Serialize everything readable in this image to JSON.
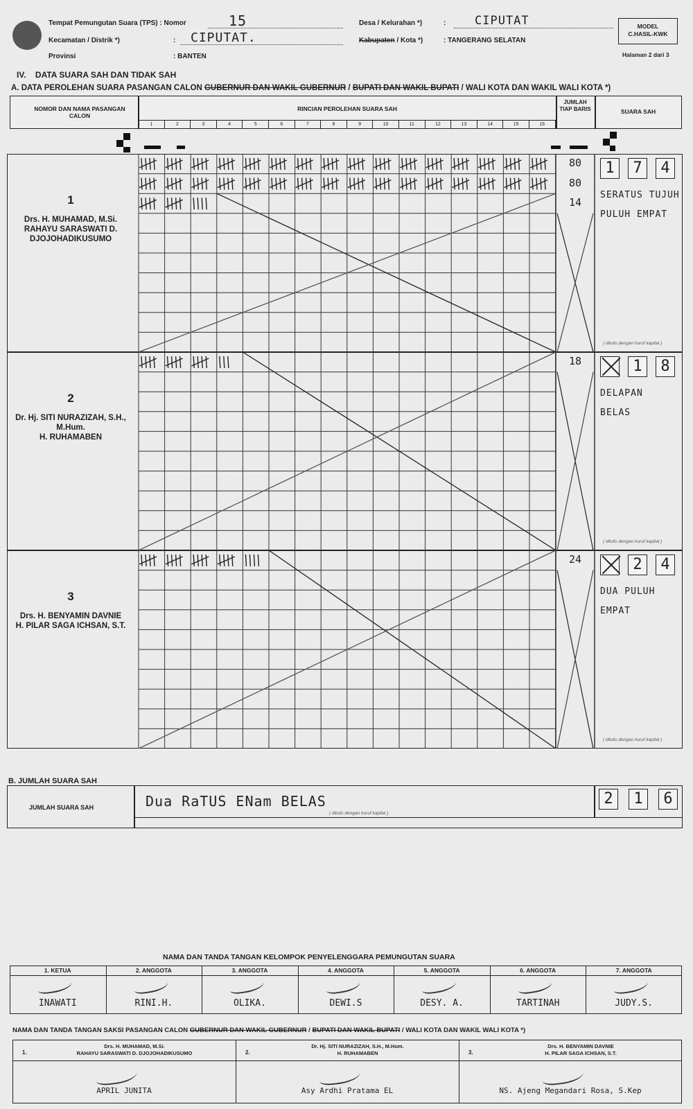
{
  "header": {
    "tps_label": "Tempat Pemungutan Suara (TPS) : Nomor",
    "tps_value": "15",
    "kecamatan_label": "Kecamatan / Distrik *)",
    "kecamatan_value": "CIPUTAT.",
    "provinsi_label": "Provinsi",
    "provinsi_value": ": BANTEN",
    "desa_label": "Desa / Kelurahan *)",
    "desa_value": "CIPUTAT",
    "kabupaten_label": "Kabupaten",
    "kota_label": "/ Kota *)",
    "kota_value": ": TANGERANG SELATAN",
    "model_line1": "MODEL",
    "model_line2": "C.HASIL-KWK",
    "halaman": "Halaman 2 dari 3"
  },
  "section": {
    "title": "IV.    DATA SUARA SAH DAN TIDAK SAH",
    "subtitle_prefix": "A. DATA PEROLEHAN SUARA PASANGAN CALON ",
    "subtitle_strike1": "GUBERNUR DAN WAKIL GUBERNUR",
    "subtitle_sep": " / ",
    "subtitle_strike2": "BUPATI DAN WAKIL BUPATI",
    "subtitle_suffix": " / WALI KOTA DAN WAKIL WALI KOTA *)"
  },
  "table_header": {
    "col1": "NOMOR DAN NAMA PASANGAN CALON",
    "col2": "RINCIAN PEROLEHAN SUARA SAH",
    "col3": "JUMLAH TIAP BARIS",
    "col4": "SUARA SAH",
    "columns": [
      "1",
      "2",
      "3",
      "4",
      "5",
      "6",
      "7",
      "8",
      "9",
      "10",
      "11",
      "12",
      "13",
      "14",
      "15",
      "16"
    ]
  },
  "note_text": "( ditulis dengan huruf kapital )",
  "candidates": [
    {
      "number": "1",
      "name1": "Drs. H. MUHAMAD, M.Si.",
      "name2": "RAHAYU SARASWATI D. DJOJOHADIKUSUMO",
      "row_totals": [
        "80",
        "80",
        "14"
      ],
      "digits": [
        "1",
        "7",
        "4"
      ],
      "words": [
        "SERATUS TUJUH",
        "PULUH EMPAT"
      ]
    },
    {
      "number": "2",
      "name1": "Dr. Hj. SITI NURAZIZAH, S.H., M.Hum.",
      "name2": "H. RUHAMABEN",
      "row_totals": [
        "18"
      ],
      "digits": [
        "X",
        "1",
        "8"
      ],
      "words": [
        "DELAPAN",
        "BELAS"
      ]
    },
    {
      "number": "3",
      "name1": "Drs. H. BENYAMIN DAVNIE",
      "name2": "H. PILAR SAGA ICHSAN, S.T.",
      "row_totals": [
        "24"
      ],
      "digits": [
        "X",
        "2",
        "4"
      ],
      "words": [
        "DUA PULUH",
        "EMPAT"
      ]
    }
  ],
  "section_b": {
    "title": "B. JUMLAH SUARA SAH",
    "label": "JUMLAH SUARA SAH",
    "words": "Dua RaTUS ENam BELAS",
    "digits": [
      "2",
      "1",
      "6"
    ]
  },
  "kpps": {
    "title": "NAMA DAN TANDA TANGAN KELOMPOK PENYELENGGARA PEMUNGUTAN SUARA",
    "members": [
      {
        "role": "1. KETUA",
        "name": "INAWATI"
      },
      {
        "role": "2. ANGGOTA",
        "name": "RINI.H."
      },
      {
        "role": "3. ANGGOTA",
        "name": "OLIKA."
      },
      {
        "role": "4. ANGGOTA",
        "name": "DEWI.S"
      },
      {
        "role": "5. ANGGOTA",
        "name": "DESY. A."
      },
      {
        "role": "6. ANGGOTA",
        "name": "TARTINAH"
      },
      {
        "role": "7. ANGGOTA",
        "name": "JUDY.S."
      }
    ]
  },
  "saksi": {
    "title_prefix": "NAMA DAN TANDA TANGAN SAKSI PASANGAN CALON ",
    "title_strike1": "GUBERNUR DAN WAKIL GUBERNUR",
    "title_sep": " / ",
    "title_strike2": "BUPATI DAN WAKIL BUPATI",
    "title_suffix": " / WALI KOTA DAN WAKIL WALI KOTA *)",
    "entries": [
      {
        "no": "1.",
        "pair1": "Drs. H. MUHAMAD, M.Si.",
        "pair2": "RAHAYU SARASWATI D. DJOJOHADIKUSUMO",
        "name": "APRIL JUNITA"
      },
      {
        "no": "2.",
        "pair1": "Dr. Hj. SITI NURAZIZAH, S.H., M.Hum.",
        "pair2": "H. RUHAMABEN",
        "name": "Asy Ardhi Pratama EL"
      },
      {
        "no": "3.",
        "pair1": "Drs. H. BENYAMIN DAVNIE",
        "pair2": "H. PILAR SAGA ICHSAN, S.T.",
        "name": "NS. Ajeng Megandari Rosa, S.Kep"
      }
    ]
  }
}
